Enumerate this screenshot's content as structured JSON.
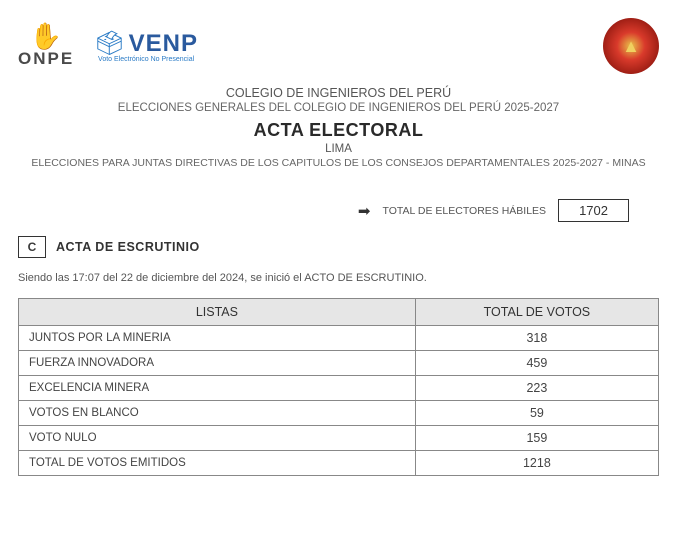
{
  "logos": {
    "onpe": "ONPE",
    "venp": "VENP",
    "venp_sub": "Voto Electrónico No Presencial"
  },
  "header": {
    "org": "COLEGIO DE INGENIEROS DEL PERÚ",
    "sub": "ELECCIONES GENERALES DEL COLEGIO DE INGENIEROS DEL PERÚ 2025-2027",
    "title": "ACTA ELECTORAL",
    "city": "LIMA",
    "desc": "ELECCIONES PARA JUNTAS DIRECTIVAS DE LOS CAPITULOS DE LOS CONSEJOS DEPARTAMENTALES 2025-2027 - MINAS"
  },
  "electors": {
    "label": "TOTAL DE ELECTORES HÁBILES",
    "value": "1702"
  },
  "section": {
    "letter": "C",
    "title": "ACTA DE ESCRUTINIO",
    "timestamp": "Siendo las 17:07 del 22 de diciembre del 2024, se inició el ACTO DE ESCRUTINIO."
  },
  "table": {
    "col_listas": "LISTAS",
    "col_votos": "TOTAL DE VOTOS",
    "rows": [
      {
        "name": "JUNTOS POR LA MINERIA",
        "value": "318"
      },
      {
        "name": "FUERZA INNOVADORA",
        "value": "459"
      },
      {
        "name": "EXCELENCIA MINERA",
        "value": "223"
      },
      {
        "name": "VOTOS EN BLANCO",
        "value": "59"
      },
      {
        "name": "VOTO NULO",
        "value": "159"
      },
      {
        "name": "TOTAL DE VOTOS EMITIDOS",
        "value": "1218"
      }
    ]
  },
  "colors": {
    "onpe_red": "#d93a2b",
    "venp_blue": "#2a5a9e",
    "table_header_bg": "#e6e6e6",
    "border": "#888888",
    "text_primary": "#333333",
    "text_secondary": "#555555"
  }
}
